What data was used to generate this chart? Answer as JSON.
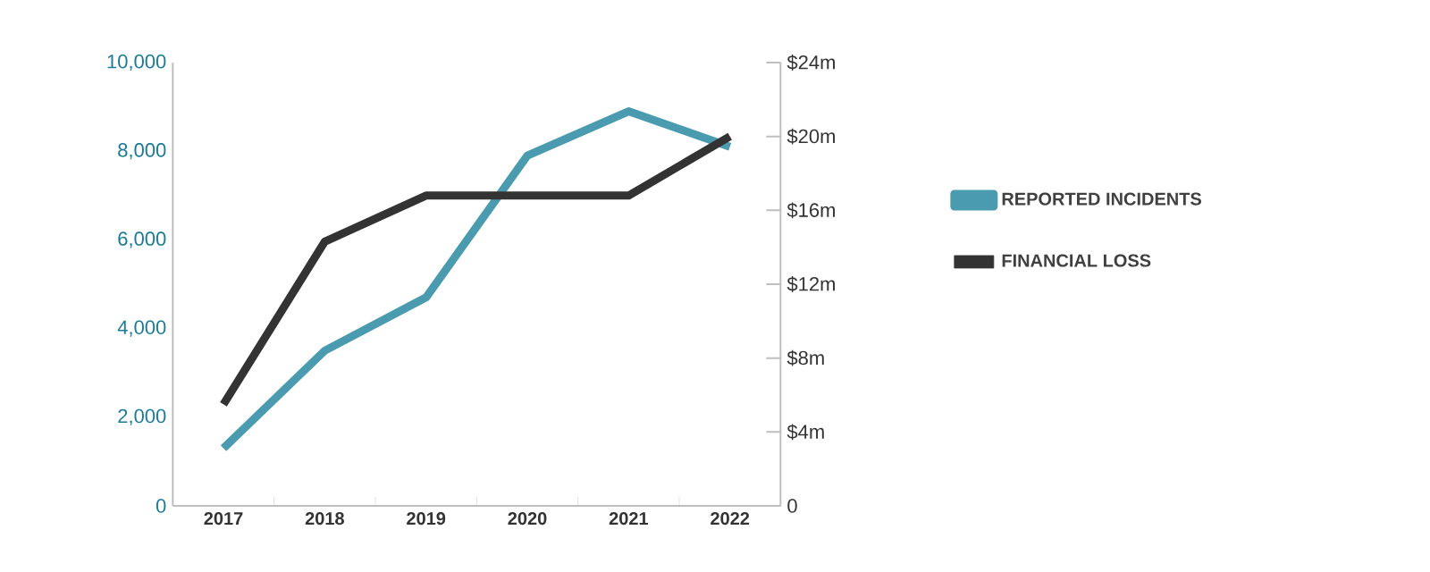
{
  "chart_data": {
    "type": "line",
    "categories": [
      "2017",
      "2018",
      "2019",
      "2020",
      "2021",
      "2022"
    ],
    "series": [
      {
        "name": "REPORTED INCIDENTS",
        "color": "#4a9bb0",
        "values": [
          1300,
          3500,
          4700,
          7900,
          8900,
          8100
        ]
      },
      {
        "name": "FINANCIAL LOSS",
        "color": "#333333",
        "axis": "y2",
        "values": [
          5.5,
          14.3,
          16.8,
          16.8,
          16.8,
          20
        ]
      }
    ],
    "ylim": [
      0,
      10000
    ],
    "yticks": [
      0,
      {
        "value": 2000,
        "label": "2,000"
      },
      {
        "value": 4000,
        "label": "4,000"
      },
      {
        "value": 6000,
        "label": "6,000"
      },
      {
        "value": 8000,
        "label": "8,000"
      },
      {
        "value": 10000,
        "label": "10,000"
      }
    ],
    "y2lim": [
      0,
      24
    ],
    "y2ticks": [
      0,
      {
        "value": 4,
        "label": "$4m"
      },
      {
        "value": 8,
        "label": "$8m"
      },
      {
        "value": 12,
        "label": "$12m"
      },
      {
        "value": 16,
        "label": "$16m"
      },
      {
        "value": 20,
        "label": "$20m"
      },
      {
        "value": 24,
        "label": "$24m"
      }
    ],
    "legend": "right"
  }
}
